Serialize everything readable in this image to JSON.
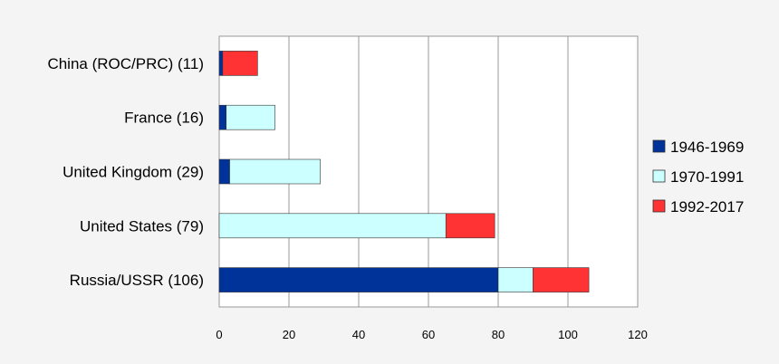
{
  "chart_data": {
    "type": "bar",
    "orientation": "horizontal",
    "stacked": true,
    "categories": [
      "China (ROC/PRC) (11)",
      "France (16)",
      "United Kingdom (29)",
      "United States (79)",
      "Russia/USSR (106)"
    ],
    "series": [
      {
        "name": "1946-1969",
        "color": "#003399",
        "values": [
          1,
          2,
          3,
          0,
          80
        ]
      },
      {
        "name": "1970-1991",
        "color": "#ccffff",
        "values": [
          0,
          14,
          26,
          65,
          10
        ]
      },
      {
        "name": "1992-2017",
        "color": "#ff3333",
        "values": [
          10,
          0,
          0,
          14,
          16
        ]
      }
    ],
    "xlim": [
      0,
      120
    ],
    "xticks": [
      "0",
      "20",
      "40",
      "60",
      "80",
      "100",
      "120"
    ],
    "grid": true,
    "legend_position": "right",
    "title": "",
    "xlabel": "",
    "ylabel": ""
  }
}
